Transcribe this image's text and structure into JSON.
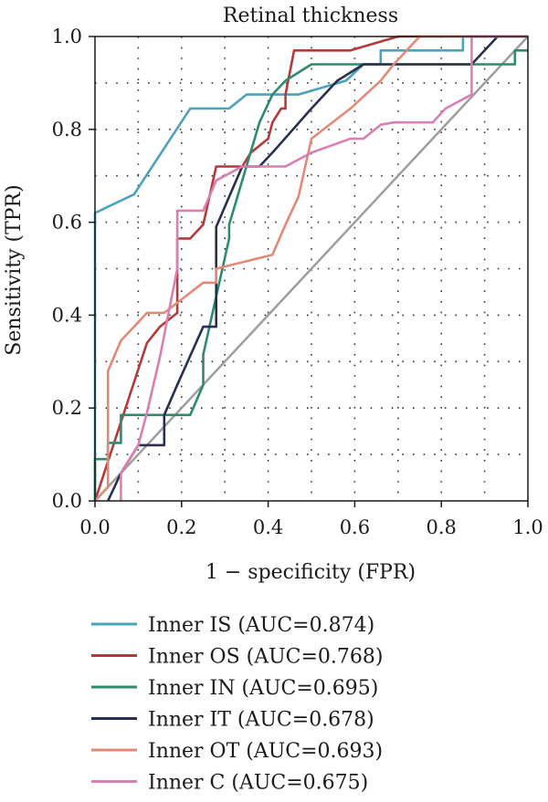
{
  "chart_data": {
    "type": "line",
    "title": "Retinal thickness",
    "xlabel": "1 − specificity (FPR)",
    "ylabel": "Sensitivity (TPR)",
    "xlim": [
      0,
      1
    ],
    "ylim": [
      0,
      1
    ],
    "xticks": [
      "0.0",
      "0.2",
      "0.4",
      "0.6",
      "0.8",
      "1.0"
    ],
    "yticks": [
      "0.0",
      "0.2",
      "0.4",
      "0.6",
      "0.8",
      "1.0"
    ],
    "grid": "dotted",
    "legend_position": "bottom",
    "reference_line": {
      "x": [
        0,
        1
      ],
      "y": [
        0,
        1
      ],
      "color": "#9e9e9e"
    },
    "series": [
      {
        "name": "Inner IS (AUC=0.874)",
        "color": "#4aa3b8",
        "x": [
          0,
          0,
          0.09,
          0.22,
          0.31,
          0.35,
          0.47,
          0.58,
          0.62,
          0.66,
          0.66,
          0.85,
          0.85,
          0.88,
          1.0
        ],
        "y": [
          0,
          0.62,
          0.66,
          0.845,
          0.845,
          0.875,
          0.875,
          0.905,
          0.94,
          0.94,
          0.97,
          0.97,
          1.0,
          1.0,
          1.0
        ]
      },
      {
        "name": "Inner OS (AUC=0.768)",
        "color": "#b33a3a",
        "x": [
          0,
          0.12,
          0.15,
          0.19,
          0.19,
          0.22,
          0.25,
          0.28,
          0.28,
          0.34,
          0.36,
          0.4,
          0.4,
          0.41,
          0.43,
          0.44,
          0.44,
          0.46,
          0.49,
          0.59,
          0.7,
          1.0
        ],
        "y": [
          0,
          0.34,
          0.375,
          0.405,
          0.565,
          0.565,
          0.595,
          0.72,
          0.72,
          0.72,
          0.75,
          0.78,
          0.78,
          0.815,
          0.845,
          0.845,
          0.875,
          0.97,
          0.97,
          0.97,
          1.0,
          1.0
        ]
      },
      {
        "name": "Inner IN (AUC=0.695)",
        "color": "#2e8a6e",
        "x": [
          0,
          0,
          0.03,
          0.03,
          0.06,
          0.06,
          0.22,
          0.25,
          0.25,
          0.31,
          0.31,
          0.38,
          0.41,
          0.44,
          0.5,
          0.6,
          0.9,
          0.97,
          0.97,
          1.0
        ],
        "y": [
          0,
          0.09,
          0.09,
          0.125,
          0.125,
          0.185,
          0.185,
          0.25,
          0.315,
          0.565,
          0.595,
          0.815,
          0.875,
          0.905,
          0.94,
          0.94,
          0.94,
          0.94,
          0.97,
          0.97
        ]
      },
      {
        "name": "Inner IT (AUC=0.678)",
        "color": "#2b2f4f",
        "x": [
          0.03,
          0.06,
          0.1,
          0.16,
          0.16,
          0.19,
          0.25,
          0.28,
          0.28,
          0.31,
          0.34,
          0.38,
          0.41,
          0.5,
          0.56,
          0.62,
          0.87,
          0.93,
          1.0
        ],
        "y": [
          0,
          0.06,
          0.12,
          0.12,
          0.185,
          0.25,
          0.375,
          0.375,
          0.59,
          0.655,
          0.72,
          0.72,
          0.75,
          0.845,
          0.905,
          0.94,
          0.94,
          1.0,
          1.0
        ]
      },
      {
        "name": "Inner OT (AUC=0.693)",
        "color": "#e28a77",
        "x": [
          0,
          0.03,
          0.03,
          0.06,
          0.12,
          0.16,
          0.25,
          0.28,
          0.28,
          0.41,
          0.44,
          0.47,
          0.5,
          0.59,
          0.66,
          0.69,
          0.72,
          0.75,
          1.0
        ],
        "y": [
          0,
          0.03,
          0.28,
          0.345,
          0.405,
          0.405,
          0.47,
          0.47,
          0.5,
          0.53,
          0.595,
          0.655,
          0.78,
          0.845,
          0.905,
          0.94,
          0.97,
          1.0,
          1.0
        ]
      },
      {
        "name": "Inner C (AUC=0.675)",
        "color": "#d97fb3",
        "x": [
          0.06,
          0.06,
          0.1,
          0.12,
          0.15,
          0.19,
          0.19,
          0.25,
          0.28,
          0.34,
          0.44,
          0.5,
          0.59,
          0.62,
          0.66,
          0.69,
          0.78,
          0.81,
          0.87,
          0.87,
          0.88,
          1.0
        ],
        "y": [
          0,
          0.06,
          0.12,
          0.19,
          0.31,
          0.5,
          0.625,
          0.625,
          0.69,
          0.72,
          0.72,
          0.75,
          0.78,
          0.78,
          0.81,
          0.815,
          0.815,
          0.845,
          0.875,
          1.0,
          1.0,
          1.0
        ]
      }
    ]
  }
}
